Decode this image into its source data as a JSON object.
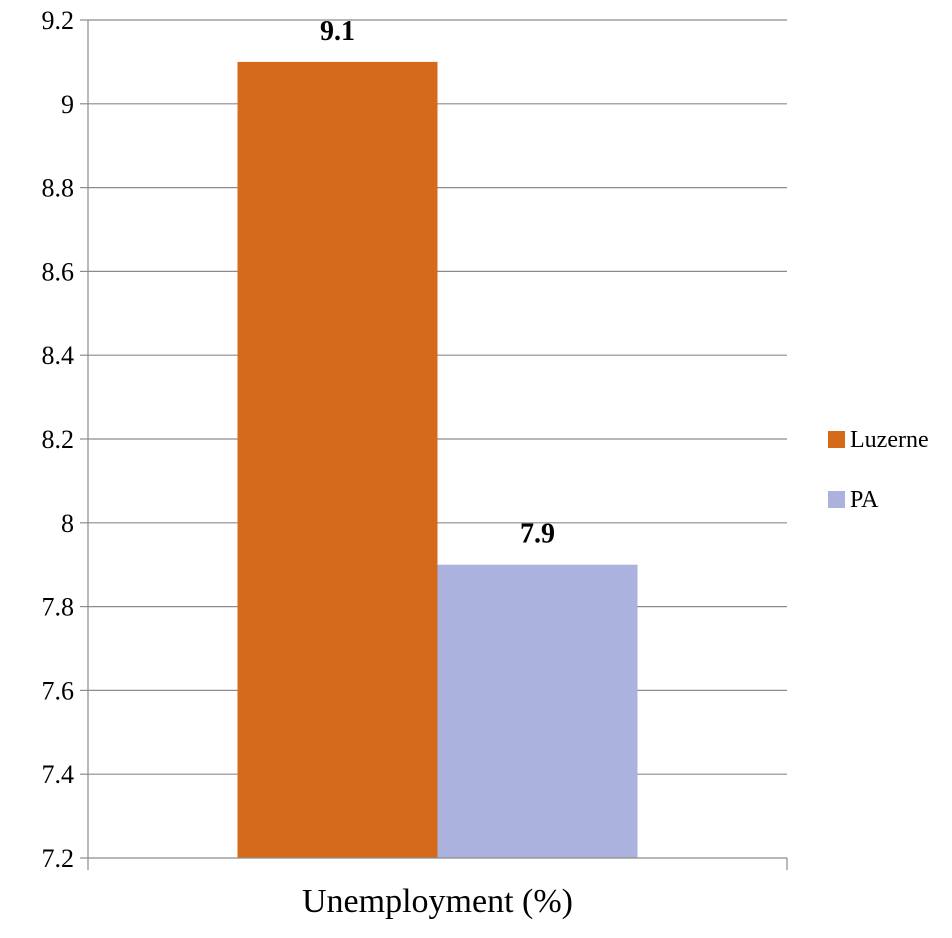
{
  "chart_data": {
    "type": "bar",
    "categories": [
      "Unemployment (%)"
    ],
    "series": [
      {
        "name": "Luzerne",
        "values": [
          9.1
        ],
        "color": "#D46A1A"
      },
      {
        "name": "PA",
        "values": [
          7.9
        ],
        "color": "#AAB2DD"
      }
    ],
    "data_labels": [
      "9.1",
      "7.9"
    ],
    "yticks": [
      "7.2",
      "7.4",
      "7.6",
      "7.8",
      "8",
      "8.2",
      "8.4",
      "8.6",
      "8.8",
      "9",
      "9.2"
    ],
    "ylim": [
      7.2,
      9.2
    ],
    "title": "",
    "xlabel": "",
    "ylabel": "",
    "grid": true,
    "legend_position": "right"
  }
}
